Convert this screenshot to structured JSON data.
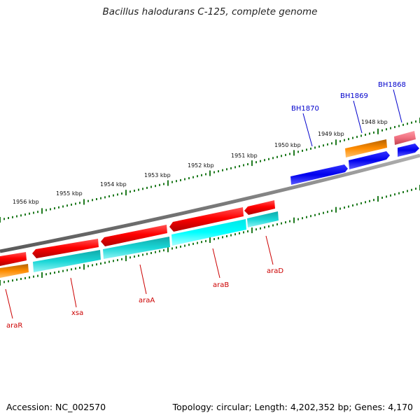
{
  "title": "Bacillus halodurans C-125, complete genome",
  "footer": {
    "accession": "Accession: NC_002570",
    "summary": "Topology: circular; Length: 4,202,352 bp; Genes: 4,170"
  },
  "scale_ticks": [
    {
      "label": "1956 kbp"
    },
    {
      "label": "1955 kbp"
    },
    {
      "label": "1954 kbp"
    },
    {
      "label": "1953 kbp"
    },
    {
      "label": "1952 kbp"
    },
    {
      "label": "1951 kbp"
    },
    {
      "label": "1950 kbp"
    },
    {
      "label": "1949 kbp"
    },
    {
      "label": "1948 kbp"
    }
  ],
  "gene_labels": [
    {
      "name": "BH1870",
      "color": "#0000cc"
    },
    {
      "name": "BH1869",
      "color": "#0000cc"
    },
    {
      "name": "BH1868",
      "color": "#0000cc"
    },
    {
      "name": "araR",
      "color": "#cc0000"
    },
    {
      "name": "xsa",
      "color": "#cc0000"
    },
    {
      "name": "araA",
      "color": "#cc0000"
    },
    {
      "name": "araB",
      "color": "#cc0000"
    },
    {
      "name": "araD",
      "color": "#cc0000"
    }
  ],
  "colors": {
    "backbone": "#8a8a8a",
    "tick": "#1f7a1f",
    "red": "#ff0000",
    "cyan": "#1ad6d6",
    "orange": "#ff8c00",
    "blue": "#0000ee",
    "pink": "#ef6f7f"
  }
}
